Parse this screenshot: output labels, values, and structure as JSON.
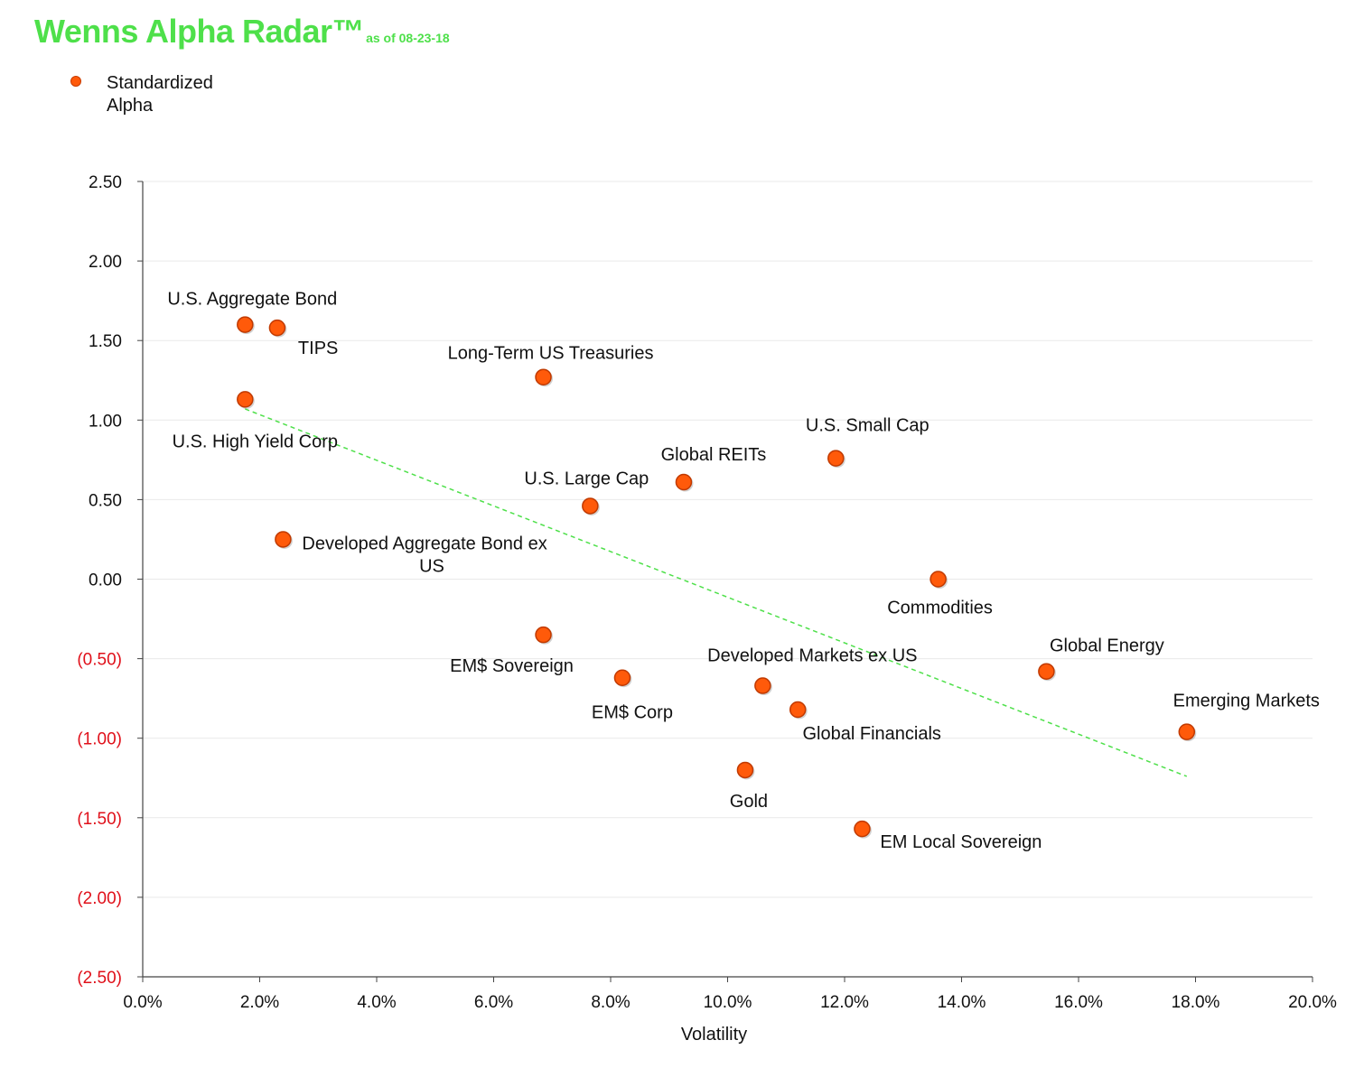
{
  "title": "Wenns Alpha Radar™",
  "subtitle": "as of 08-23-18",
  "chart_data": {
    "type": "scatter",
    "title": "Wenns Alpha Radar™",
    "subtitle": "as of 08-23-18",
    "xlabel": "Volatility",
    "ylabel": "",
    "xlim": [
      0.0,
      20.0
    ],
    "ylim": [
      -2.5,
      2.5
    ],
    "grid": true,
    "legend": "top-left",
    "series": [
      {
        "name": "Standardized Alpha",
        "color": "#ff5a0a",
        "points": [
          {
            "label": "U.S. Aggregate Bond",
            "x": 1.75,
            "y": 1.6
          },
          {
            "label": "TIPS",
            "x": 2.3,
            "y": 1.58
          },
          {
            "label": "Long-Term US Treasuries",
            "x": 6.85,
            "y": 1.27
          },
          {
            "label": "U.S. High Yield Corp",
            "x": 1.75,
            "y": 1.13
          },
          {
            "label": "U.S. Small Cap",
            "x": 11.85,
            "y": 0.76
          },
          {
            "label": "Global REITs",
            "x": 9.25,
            "y": 0.61
          },
          {
            "label": "U.S. Large Cap",
            "x": 7.65,
            "y": 0.46
          },
          {
            "label": "Developed Aggregate Bond ex US",
            "x": 2.4,
            "y": 0.25
          },
          {
            "label": "Commodities",
            "x": 13.6,
            "y": 0.0
          },
          {
            "label": "EM$ Sovereign",
            "x": 6.85,
            "y": -0.35
          },
          {
            "label": "Global Energy",
            "x": 15.45,
            "y": -0.58
          },
          {
            "label": "EM$ Corp",
            "x": 8.2,
            "y": -0.62
          },
          {
            "label": "Developed Markets ex US",
            "x": 10.6,
            "y": -0.67
          },
          {
            "label": "Global Financials",
            "x": 11.2,
            "y": -0.82
          },
          {
            "label": "Emerging Markets",
            "x": 17.85,
            "y": -0.96
          },
          {
            "label": "Gold",
            "x": 10.3,
            "y": -1.2
          },
          {
            "label": "EM Local Sovereign",
            "x": 12.3,
            "y": -1.57
          }
        ]
      }
    ],
    "trendline": {
      "x": [
        1.75,
        17.85
      ],
      "y": [
        1.07,
        -1.24
      ],
      "color": "#4ee04a",
      "style": "dashed"
    },
    "x_ticks": [
      "0.0%",
      "2.0%",
      "4.0%",
      "6.0%",
      "8.0%",
      "10.0%",
      "12.0%",
      "14.0%",
      "16.0%",
      "18.0%",
      "20.0%"
    ],
    "y_ticks": [
      "2.50",
      "2.00",
      "1.50",
      "1.00",
      "0.50",
      "0.00",
      "(0.50)",
      "(1.00)",
      "(1.50)",
      "(2.00)",
      "(2.50)"
    ],
    "negative_tick_color": "#e0101a"
  }
}
